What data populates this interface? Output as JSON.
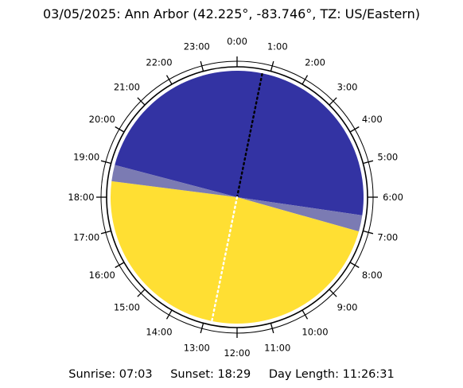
{
  "title": "03/05/2025: Ann Arbor (42.225°, -83.746°, TZ: US/Eastern)",
  "footer": {
    "sunrise": "Sunrise: 07:03",
    "sunset": "Sunset: 18:29",
    "day_length": "Day Length: 11:26:31"
  },
  "chart_data": {
    "type": "pie",
    "title": "03/05/2025: Ann Arbor (42.225°, -83.746°, TZ: US/Eastern)",
    "hour_labels": [
      "0:00",
      "1:00",
      "2:00",
      "3:00",
      "4:00",
      "5:00",
      "6:00",
      "7:00",
      "8:00",
      "9:00",
      "10:00",
      "11:00",
      "12:00",
      "13:00",
      "14:00",
      "15:00",
      "16:00",
      "17:00",
      "18:00",
      "19:00",
      "20:00",
      "21:00",
      "22:00",
      "23:00"
    ],
    "segments": [
      {
        "name": "night",
        "start": "18:59",
        "end": "6:33",
        "color": "#3333a3"
      },
      {
        "name": "twilight",
        "start": "6:33",
        "end": "7:03",
        "color": "#7b7bb3"
      },
      {
        "name": "day",
        "start": "7:03",
        "end": "18:29",
        "color": "#ffdf33"
      },
      {
        "name": "twilight",
        "start": "18:29",
        "end": "18:59",
        "color": "#7b7bb3"
      }
    ],
    "solar_noon": "12:46",
    "solar_midnight": "0:46",
    "sunrise": "07:03",
    "sunset": "18:29",
    "day_length": "11:26:31"
  }
}
